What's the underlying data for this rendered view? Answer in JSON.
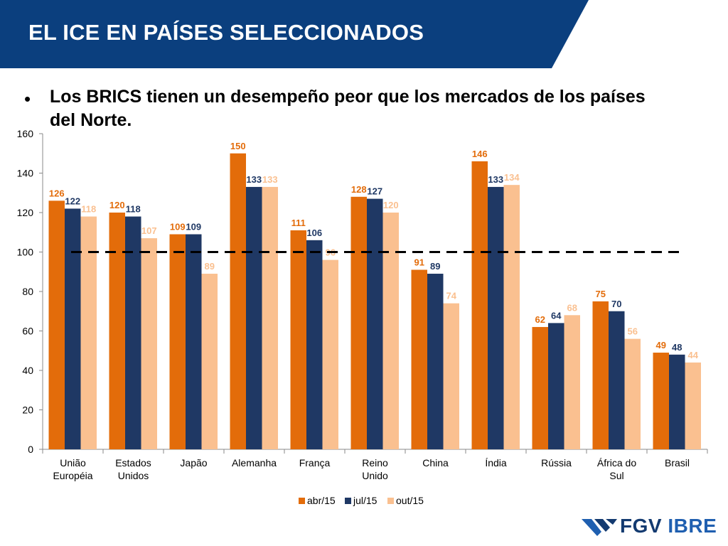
{
  "slide": {
    "title": "EL ICE EN PAÍSES SELECCIONADOS",
    "bullet": "Los BRICS tienen un desempeño peor que los mercados de los países del Norte.",
    "logo_fgv": "FGV",
    "logo_ibre": "IBRE"
  },
  "colors": {
    "header_blue": "#0b3f7e",
    "abr15": "#e36c0a",
    "jul15": "#1f3864",
    "out15": "#fac090",
    "reference_line": "#000000"
  },
  "chart_data": {
    "type": "bar",
    "title": "",
    "xlabel": "",
    "ylabel": "",
    "ylim": [
      0,
      160
    ],
    "yticks": [
      0,
      20,
      40,
      60,
      80,
      100,
      120,
      140,
      160
    ],
    "grid": false,
    "legend_position": "bottom",
    "reference_line": {
      "value": 100,
      "style": "dashed"
    },
    "categories": [
      [
        "União",
        "Européia"
      ],
      [
        "Estados",
        "Unidos"
      ],
      [
        "Japão"
      ],
      [
        "Alemanha"
      ],
      [
        "França"
      ],
      [
        "Reino",
        "Unido"
      ],
      [
        "China"
      ],
      [
        "Índia"
      ],
      [
        "Rússia"
      ],
      [
        "África do",
        "Sul"
      ],
      [
        "Brasil"
      ]
    ],
    "series": [
      {
        "name": "abr/15",
        "values": [
          126,
          120,
          109,
          150,
          111,
          128,
          91,
          146,
          62,
          75,
          49
        ]
      },
      {
        "name": "jul/15",
        "values": [
          122,
          118,
          109,
          133,
          106,
          127,
          89,
          133,
          64,
          70,
          48
        ]
      },
      {
        "name": "out/15",
        "values": [
          118,
          107,
          89,
          133,
          96,
          120,
          74,
          134,
          68,
          56,
          44
        ]
      }
    ]
  }
}
